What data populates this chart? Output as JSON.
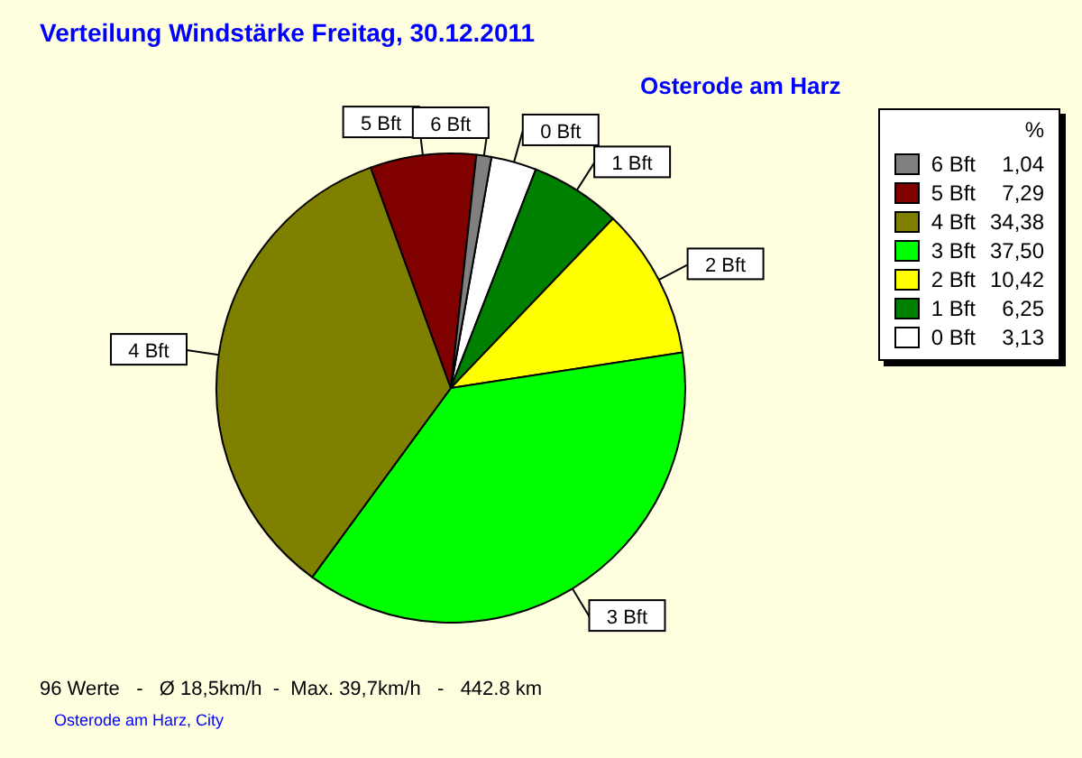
{
  "chart_data": {
    "type": "pie",
    "title": "Verteilung Windstärke  Freitag, 30.12.2011",
    "subtitle": "Osterode am Harz",
    "legend_title": "%",
    "categories": [
      "0 Bft",
      "1 Bft",
      "2 Bft",
      "3 Bft",
      "4 Bft",
      "5 Bft",
      "6 Bft"
    ],
    "values": [
      3.13,
      6.25,
      10.42,
      37.5,
      34.38,
      7.29,
      1.04
    ],
    "value_labels": [
      "3,13",
      "6,25",
      "10,42",
      "37,50",
      "34,38",
      "7,29",
      "1,04"
    ],
    "colors": [
      "#ffffff",
      "#008000",
      "#ffff00",
      "#00ff00",
      "#808000",
      "#800000",
      "#808080"
    ],
    "legend": "top right",
    "annotations": [
      "96 Werte   -   Ø 18,5km/h  -  Max. 39,7km/h   -   442.8 km",
      "Osterode am Harz, City"
    ]
  }
}
